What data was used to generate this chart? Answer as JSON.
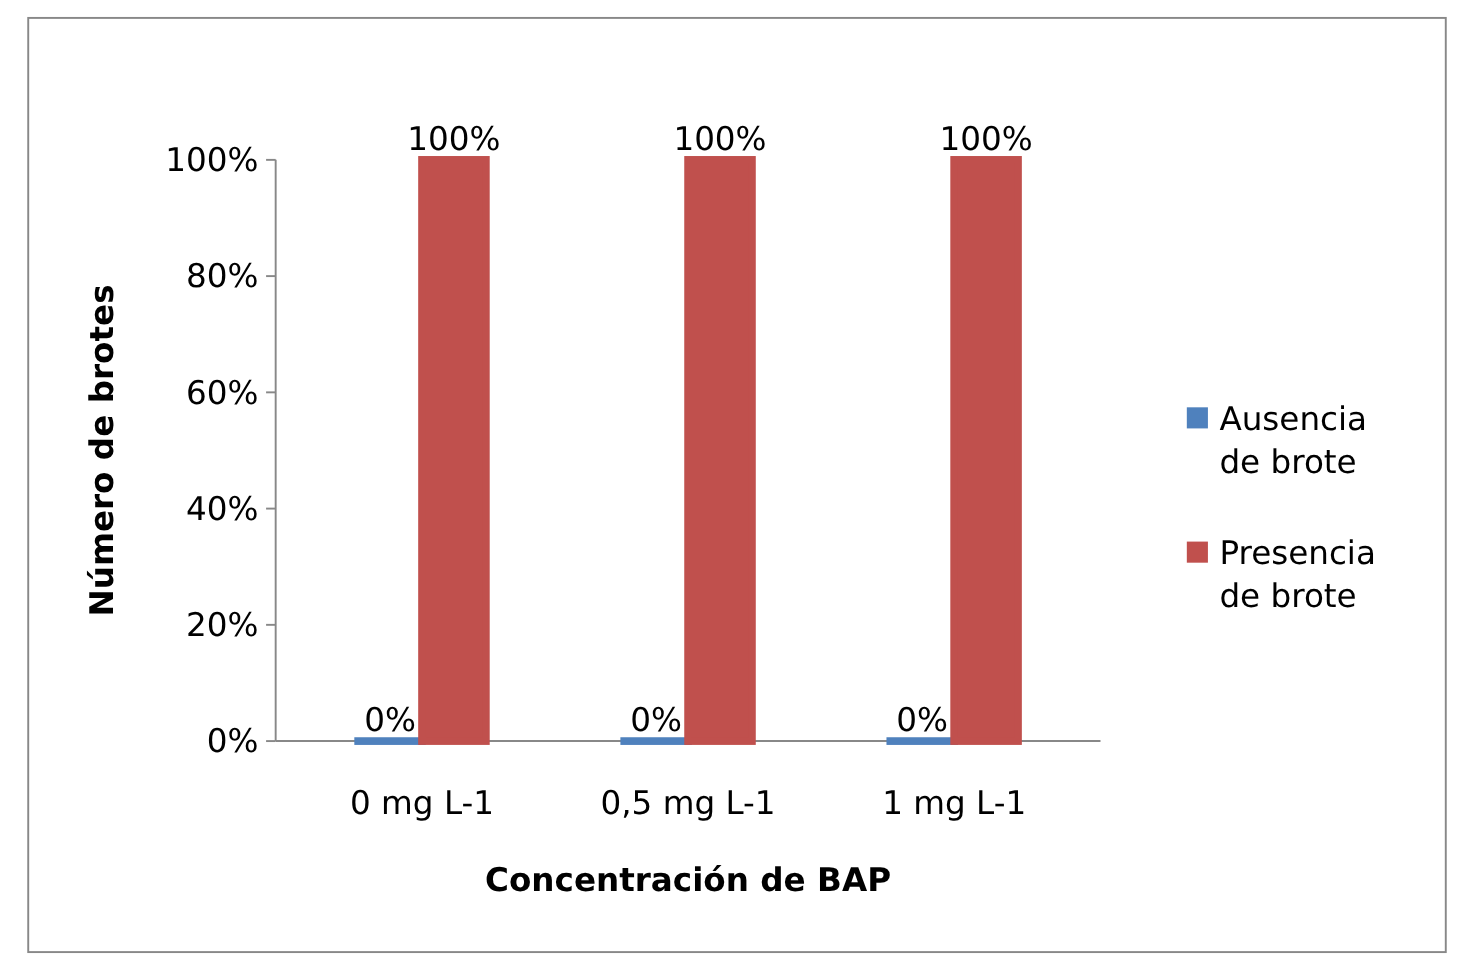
{
  "chart_data": {
    "type": "bar",
    "xlabel": "Concentración de BAP",
    "ylabel": "Número de brotes",
    "categories": [
      "0 mg L-1",
      "0,5 mg L-1",
      "1 mg L-1"
    ],
    "series": [
      {
        "name": "Ausencia de brote",
        "color": "#4f81bd",
        "values": [
          0,
          0,
          0
        ],
        "value_labels": [
          "0%",
          "0%",
          "0%"
        ]
      },
      {
        "name": "Presencia de brote",
        "color": "#c0504d",
        "values": [
          100,
          100,
          100
        ],
        "value_labels": [
          "100%",
          "100%",
          "100%"
        ]
      }
    ],
    "ylim": [
      0,
      100
    ],
    "yticks": [
      {
        "value": 0,
        "label": "0%"
      },
      {
        "value": 20,
        "label": "20%"
      },
      {
        "value": 40,
        "label": "40%"
      },
      {
        "value": 60,
        "label": "60%"
      },
      {
        "value": 80,
        "label": "80%"
      },
      {
        "value": 100,
        "label": "100%"
      }
    ],
    "grid": false,
    "legend": "right"
  }
}
